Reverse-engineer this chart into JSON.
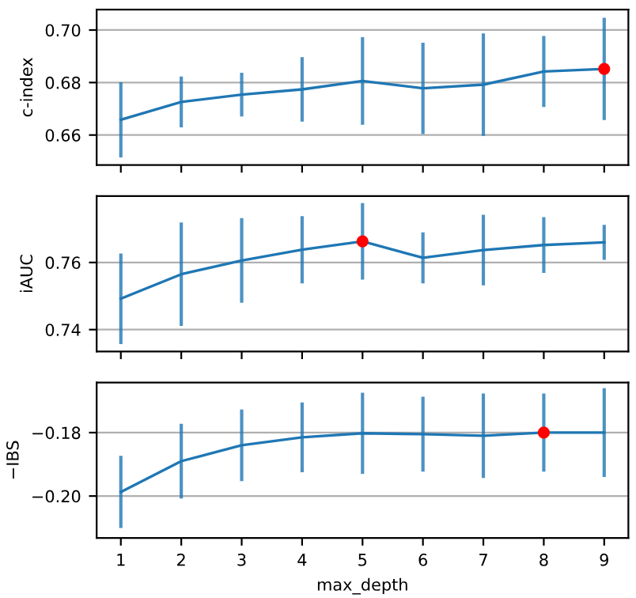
{
  "chart_data": [
    {
      "type": "line",
      "ylabel": "c-index",
      "x": [
        1,
        2,
        3,
        4,
        5,
        6,
        7,
        8,
        9
      ],
      "xlim": [
        0.6,
        9.4
      ],
      "xticks": [
        1,
        2,
        3,
        4,
        5,
        6,
        7,
        8,
        9
      ],
      "ylim": [
        0.6486,
        0.7078
      ],
      "yticks": [
        {
          "value": 0.66,
          "label": "0.66"
        },
        {
          "value": 0.68,
          "label": "0.68"
        },
        {
          "value": 0.7,
          "label": "0.70"
        }
      ],
      "grid": "y",
      "tick_labels": "y",
      "series": [
        {
          "color": "#1f77b4",
          "values": [
            0.6658,
            0.6726,
            0.6754,
            0.6774,
            0.6806,
            0.6778,
            0.6792,
            0.6842,
            0.6852
          ],
          "errors": [
            0.0143,
            0.0097,
            0.0083,
            0.0123,
            0.0167,
            0.0174,
            0.0195,
            0.0135,
            0.0195
          ]
        },
        {
          "type": "scatter",
          "color": "#ff0000",
          "x": [
            9
          ],
          "values": [
            0.6852
          ]
        }
      ]
    },
    {
      "type": "line",
      "ylabel": "iAUC",
      "x": [
        1,
        2,
        3,
        4,
        5,
        6,
        7,
        8,
        9
      ],
      "xlim": [
        0.6,
        9.4
      ],
      "xticks": [
        1,
        2,
        3,
        4,
        5,
        6,
        7,
        8,
        9
      ],
      "ylim": [
        0.7335,
        0.7798
      ],
      "yticks": [
        {
          "value": 0.74,
          "label": "0.74"
        },
        {
          "value": 0.76,
          "label": "0.76"
        }
      ],
      "grid": "y",
      "tick_labels": "y",
      "series": [
        {
          "color": "#1f77b4",
          "values": [
            0.7492,
            0.7565,
            0.7606,
            0.7638,
            0.7663,
            0.7614,
            0.7637,
            0.7652,
            0.766
          ],
          "errors": [
            0.0135,
            0.0154,
            0.0126,
            0.01,
            0.0114,
            0.0076,
            0.0105,
            0.0083,
            0.0052
          ]
        },
        {
          "type": "scatter",
          "color": "#ff0000",
          "x": [
            5
          ],
          "values": [
            0.7663
          ]
        }
      ]
    },
    {
      "type": "line",
      "ylabel": "−IBS",
      "xlabel": "max_depth",
      "x": [
        1,
        2,
        3,
        4,
        5,
        6,
        7,
        8,
        9
      ],
      "xlim": [
        0.6,
        9.4
      ],
      "xticks": [
        1,
        2,
        3,
        4,
        5,
        6,
        7,
        8,
        9
      ],
      "ylim": [
        -0.2132,
        -0.1642
      ],
      "yticks": [
        {
          "value": -0.2,
          "label": "−0.20"
        },
        {
          "value": -0.18,
          "label": "−0.18"
        }
      ],
      "grid": "y",
      "series": [
        {
          "color": "#1f77b4",
          "values": [
            -0.1987,
            -0.189,
            -0.184,
            -0.1815,
            -0.1802,
            -0.1805,
            -0.181,
            -0.18,
            -0.18
          ],
          "errors": [
            0.0114,
            0.0118,
            0.0113,
            0.011,
            0.0128,
            0.0118,
            0.0133,
            0.0123,
            0.014
          ]
        },
        {
          "type": "scatter",
          "color": "#ff0000",
          "x": [
            8
          ],
          "values": [
            -0.18
          ]
        }
      ]
    }
  ]
}
